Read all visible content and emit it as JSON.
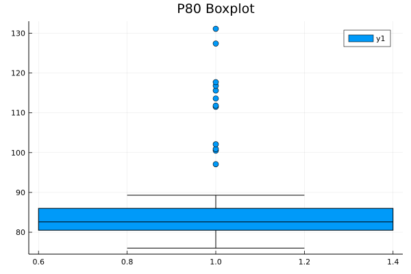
{
  "chart_data": {
    "type": "boxplot",
    "title": "P80 Boxplot",
    "xlabel": "",
    "ylabel": "",
    "xlim": [
      0.578,
      1.422
    ],
    "ylim": [
      74.5,
      133
    ],
    "xticks": [
      0.6,
      0.8,
      1.0,
      1.2,
      1.4
    ],
    "xtick_labels": [
      "0.6",
      "0.8",
      "1.0",
      "1.2",
      "1.4"
    ],
    "yticks": [
      80,
      90,
      100,
      110,
      120,
      130
    ],
    "ytick_labels": [
      "80",
      "90",
      "100",
      "110",
      "120",
      "130"
    ],
    "grid": true,
    "legend_position": "top-right",
    "series": [
      {
        "name": "y1",
        "color": "#009af9",
        "x_center": 1.0,
        "box_x_range": [
          0.6,
          1.4
        ],
        "whisker_x_range": [
          0.8,
          1.2
        ],
        "q1": 80.5,
        "median": 82.6,
        "q3": 86.0,
        "whisker_low": 76.0,
        "whisker_high": 89.3,
        "outliers": [
          97.1,
          100.5,
          100.9,
          102.1,
          111.5,
          111.8,
          113.6,
          115.6,
          116.8,
          117.7,
          127.4,
          131.1
        ]
      }
    ]
  }
}
